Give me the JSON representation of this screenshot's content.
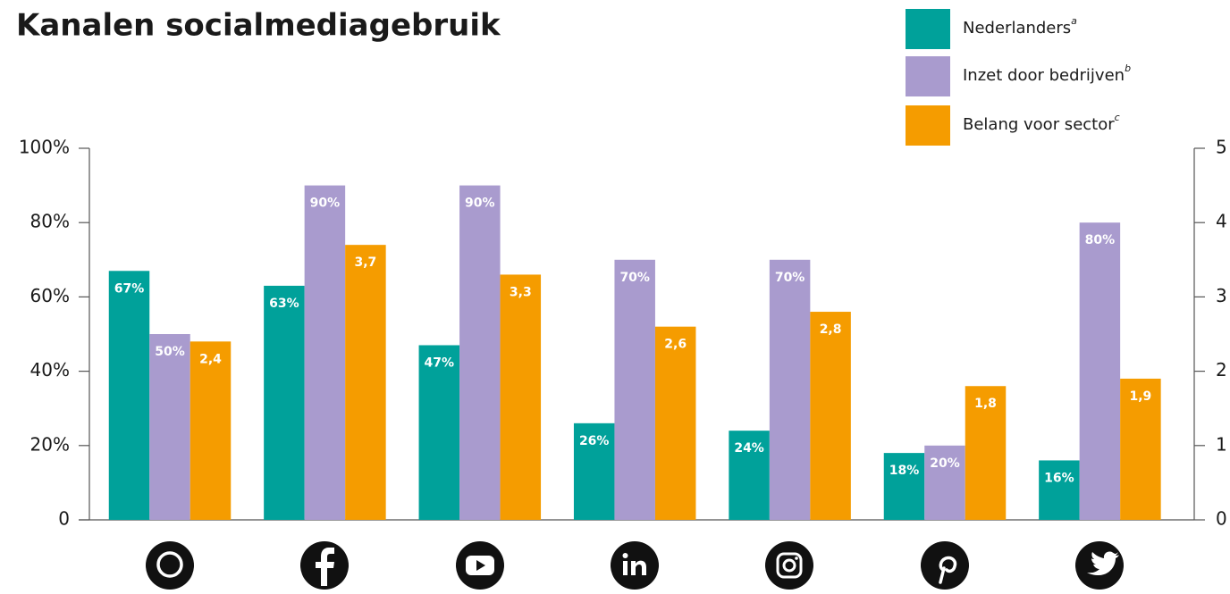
{
  "chart_data": {
    "type": "bar",
    "title": "Kanalen socialmediagebruik",
    "categories": [
      null,
      null,
      null,
      null,
      null,
      null,
      null
    ],
    "series": [
      {
        "name": "Nederlanders",
        "note": "a",
        "color": "#00a19a",
        "axis": "y",
        "values": [
          67,
          63,
          47,
          26,
          24,
          18,
          16
        ],
        "value_labels": [
          "67%",
          "63%",
          "47%",
          "26%",
          "24%",
          "18%",
          "16%"
        ]
      },
      {
        "name": "Inzet door bedrijven",
        "note": "b",
        "color": "#a99bce",
        "axis": "y",
        "values": [
          50,
          90,
          90,
          70,
          70,
          20,
          80
        ],
        "value_labels": [
          "50%",
          "90%",
          "90%",
          "70%",
          "70%",
          "20%",
          "80%"
        ]
      },
      {
        "name": "Belang voor sector",
        "note": "c",
        "color": "#f59c00",
        "axis": "y2",
        "values": [
          2.4,
          3.7,
          3.3,
          2.6,
          2.8,
          1.8,
          1.9
        ],
        "value_labels": [
          "2,4",
          "3,7",
          "3,3",
          "2,6",
          "2,8",
          "1,8",
          "1,9"
        ]
      }
    ],
    "ylim": [
      0,
      100
    ],
    "yticks": [
      0,
      {
        "value": 20,
        "label": "20%"
      },
      {
        "value": 40,
        "label": "40%"
      },
      {
        "value": 60,
        "label": "60%"
      },
      {
        "value": 80,
        "label": "80%"
      },
      {
        "value": 100,
        "label": "100%"
      }
    ],
    "y2lim": [
      0,
      5
    ],
    "y2ticks": [
      0,
      1,
      2,
      3,
      4,
      5
    ],
    "legend": "top-right"
  }
}
